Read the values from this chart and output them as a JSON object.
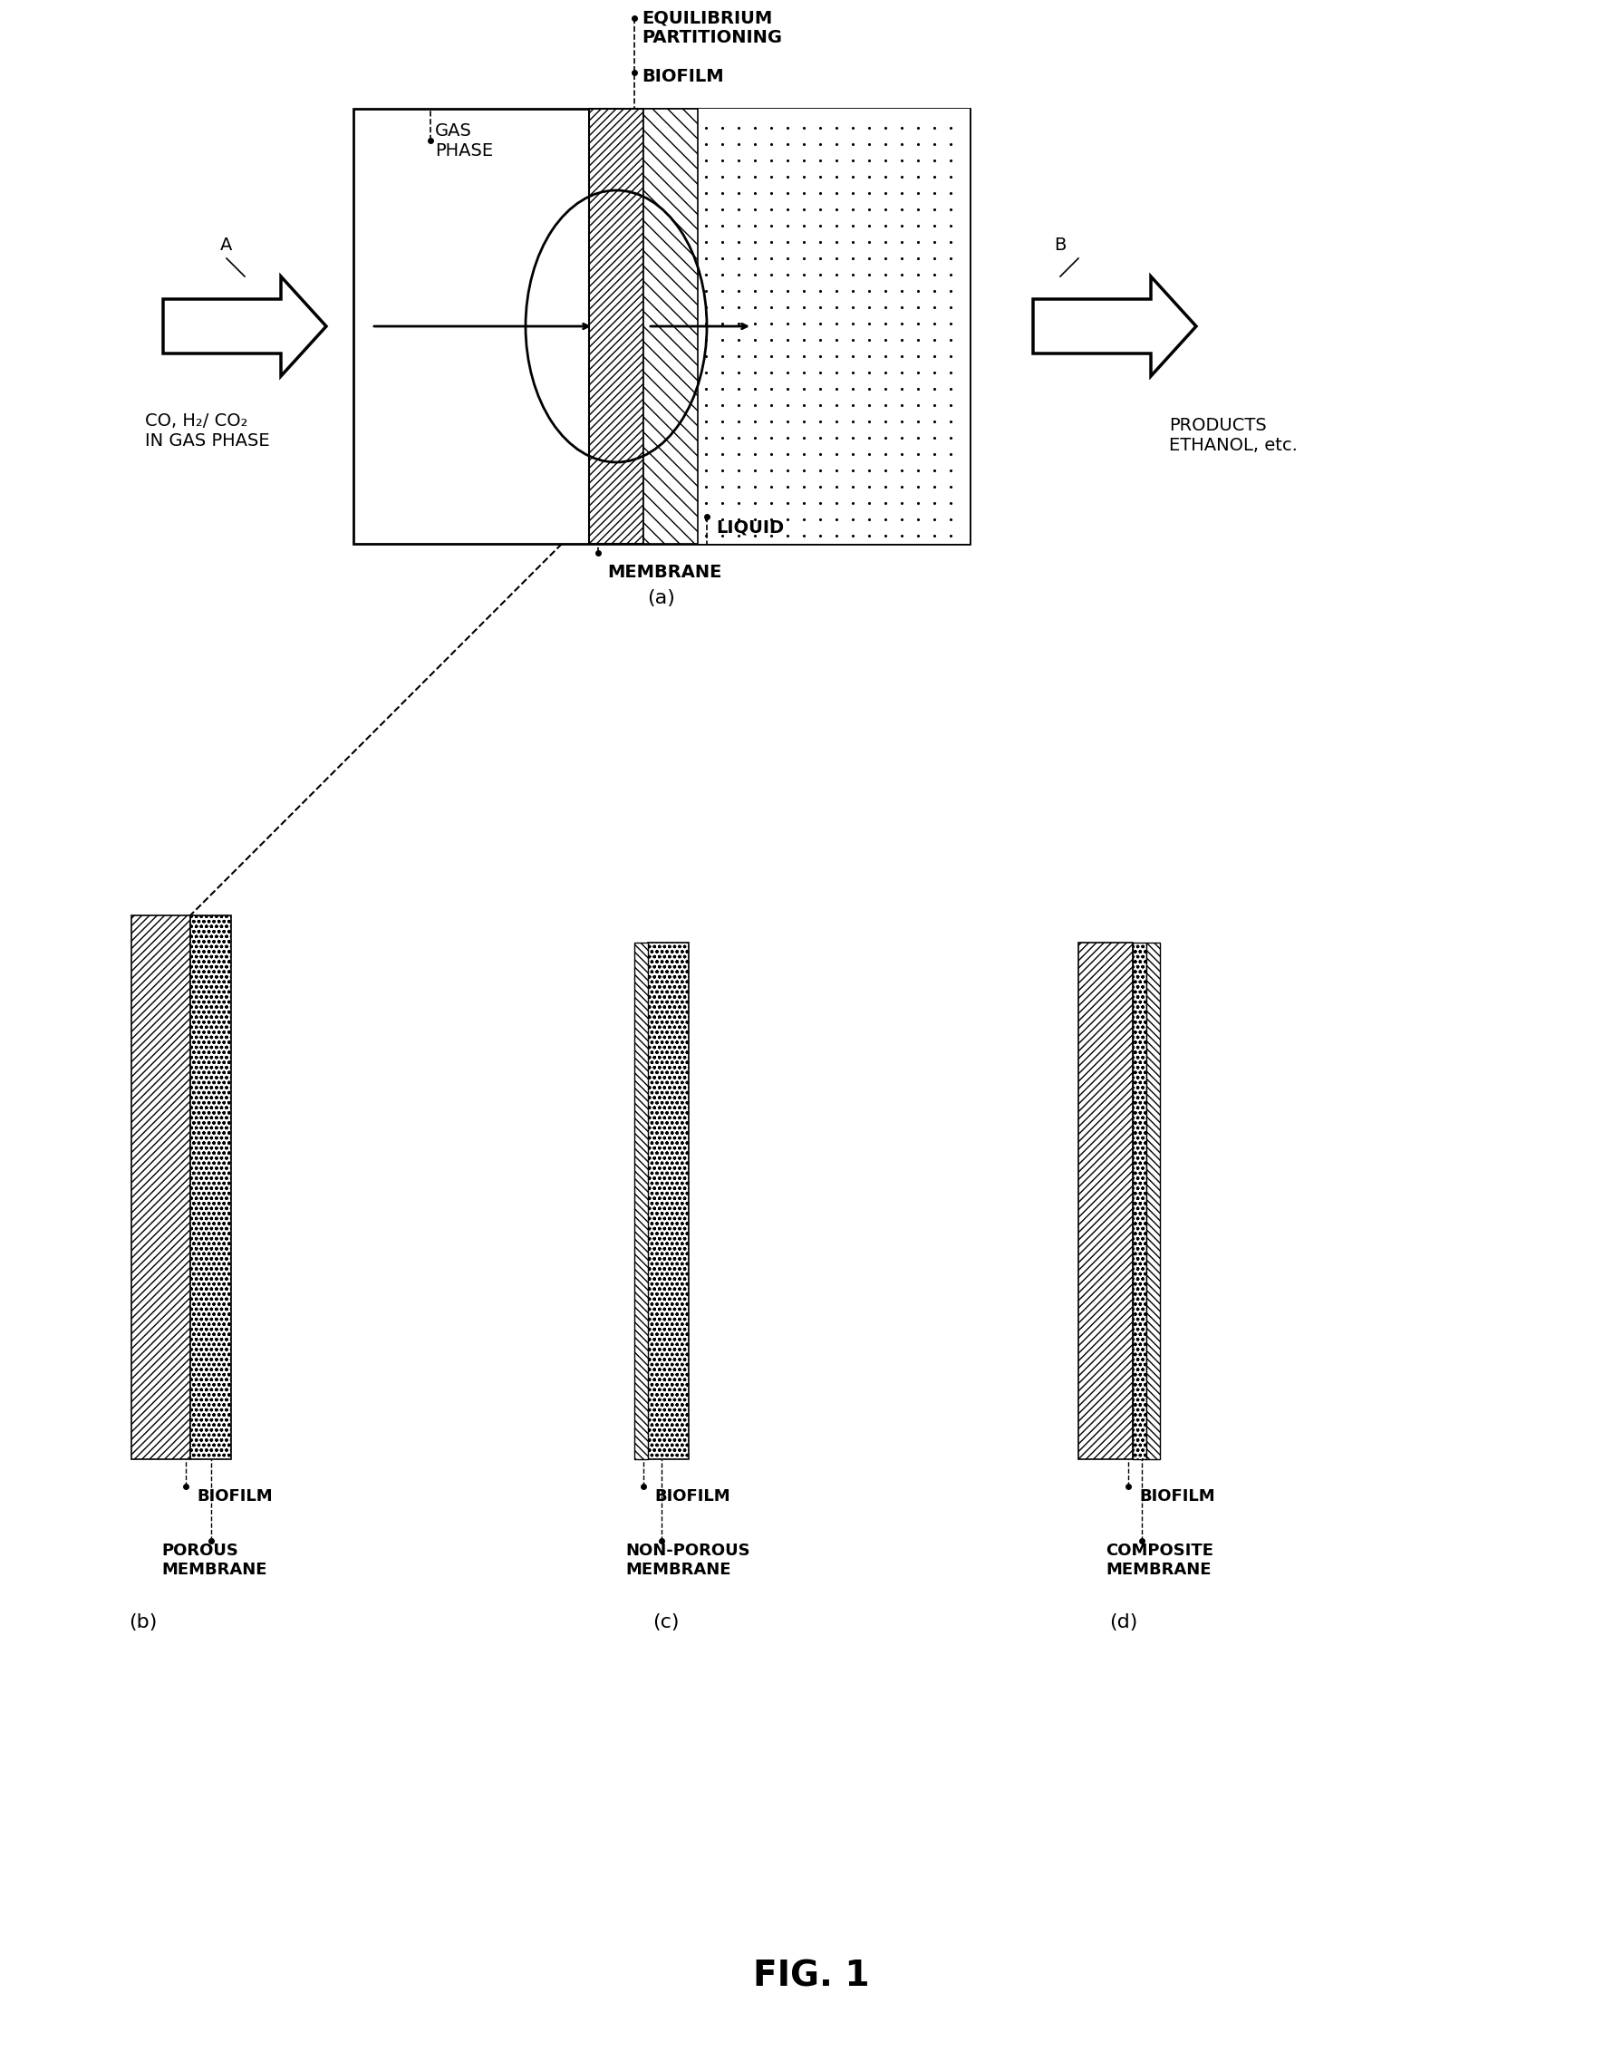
{
  "fig_width": 17.91,
  "fig_height": 22.85,
  "bg_color": "#ffffff",
  "line_color": "#000000",
  "title": "FIG. 1",
  "label_a": "A",
  "label_b": "B",
  "label_a_sub": "(a)",
  "label_b_sub": "(b)",
  "label_c_sub": "(c)",
  "label_d_sub": "(d)",
  "text_gas_phase": "GAS\nPHASE",
  "text_equilibrium": "EQUILIBRIUM\nPARTITIONING",
  "text_biofilm": "BIOFILM",
  "text_liquid": "LIQUID",
  "text_membrane": "MEMBRANE",
  "text_co": "CO, H₂/ CO₂\nIN GAS PHASE",
  "text_products": "PRODUCTS\nETHANOL, etc.",
  "text_biofilm_b": "BIOFILM",
  "text_porous": "POROUS\nMEMBRANE",
  "text_biofilm_c": "BIOFILM",
  "text_nonporous": "NON-POROUS\nMEMBRANE",
  "text_biofilm_d": "BIOFILM",
  "text_composite": "COMPOSITE\nMEMBRANE"
}
